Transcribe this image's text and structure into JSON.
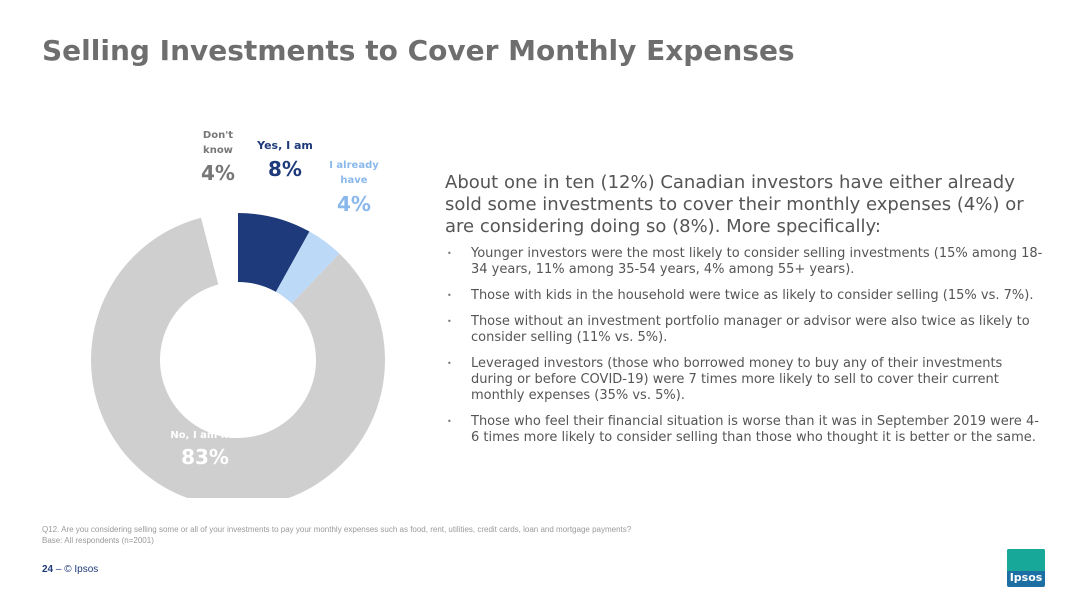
{
  "header": {
    "title": "Selling Investments to Cover Monthly Expenses"
  },
  "chart_data": {
    "type": "pie",
    "donut": true,
    "slices": [
      {
        "label": "Yes, I am",
        "value": 8,
        "display": "8%",
        "color": "#1f3a7a",
        "label_color": "#1f3a7a"
      },
      {
        "label": "I already have",
        "value": 4,
        "display": "4%",
        "color": "#bcd9f8",
        "label_color": "#8ab8ec"
      },
      {
        "label": "No, I am not",
        "value": 83,
        "display": "83%",
        "color": "#cfcfcf",
        "label_color": "#ffffff"
      },
      {
        "label": "Don't know",
        "value": 4,
        "display": "4%",
        "color": "#ffffff",
        "label_color": "#777777"
      }
    ]
  },
  "summary": {
    "text": "About one in ten (12%) Canadian investors have either already sold some investments to cover their monthly expenses (4%) or are considering doing so (8%). More specifically:",
    "bullets": [
      "Younger investors were the most likely to consider selling investments (15% among 18-34 years, 11% among 35-54 years, 4% among 55+ years).",
      "Those with kids in the household were twice as likely to consider selling (15% vs. 7%).",
      "Those without an investment portfolio manager or advisor were also twice as likely to consider selling (11% vs. 5%).",
      "Leveraged investors (those who borrowed money to buy any of their investments during or before COVID-19) were 7 times more likely to sell to cover their current monthly expenses (35% vs. 5%).",
      "Those who feel their financial situation is worse than it was in September 2019 were 4-6 times more likely to consider selling than those who thought it is better or the same."
    ]
  },
  "footnote": {
    "question": "Q12. Are you considering selling some or all of your investments to pay your monthly expenses such as food, rent, utilities, credit cards, loan and mortgage payments?",
    "base": "Base: All respondents (n=2001)"
  },
  "footer": {
    "page": "24",
    "separator": "–",
    "copyright": "© Ipsos"
  },
  "logo": {
    "text": "Ipsos"
  }
}
